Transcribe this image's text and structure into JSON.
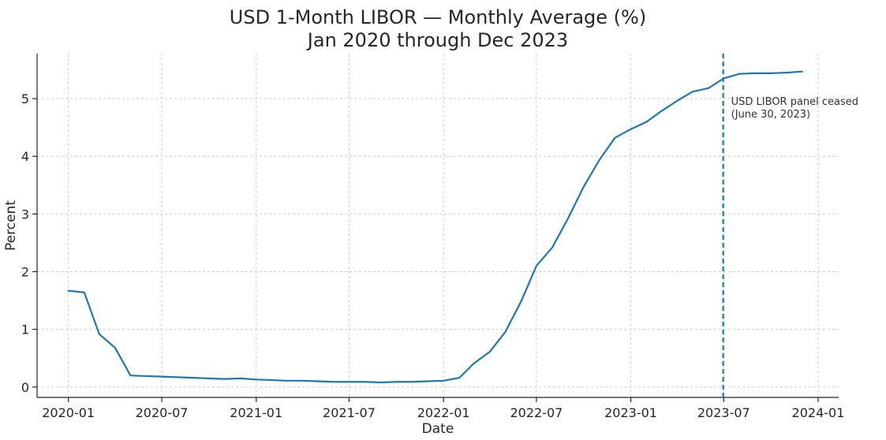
{
  "chart_data": {
    "type": "line",
    "title": "USD 1-Month LIBOR — Monthly Average (%)",
    "subtitle": "Jan 2020 through Dec 2023",
    "xlabel": "Date",
    "ylabel": "Percent",
    "x_type": "date",
    "xlim": [
      "2019-11-01",
      "2024-02-10"
    ],
    "ylim": [
      -0.18,
      5.78
    ],
    "grid": true,
    "x_ticks": [
      "2020-01",
      "2020-07",
      "2021-01",
      "2021-07",
      "2022-01",
      "2022-07",
      "2023-01",
      "2023-07",
      "2024-01"
    ],
    "y_ticks": [
      0,
      1,
      2,
      3,
      4,
      5
    ],
    "series": [
      {
        "color": "#1f77b4",
        "x": [
          "2020-01-01",
          "2020-02-01",
          "2020-03-01",
          "2020-04-01",
          "2020-05-01",
          "2020-06-01",
          "2020-07-01",
          "2020-08-01",
          "2020-09-01",
          "2020-10-01",
          "2020-11-01",
          "2020-12-01",
          "2021-01-01",
          "2021-02-01",
          "2021-03-01",
          "2021-04-01",
          "2021-05-01",
          "2021-06-01",
          "2021-07-01",
          "2021-08-01",
          "2021-09-01",
          "2021-10-01",
          "2021-11-01",
          "2021-12-01",
          "2022-01-01",
          "2022-02-01",
          "2022-03-01",
          "2022-04-01",
          "2022-05-01",
          "2022-06-01",
          "2022-07-01",
          "2022-08-01",
          "2022-09-01",
          "2022-10-01",
          "2022-11-01",
          "2022-12-01",
          "2023-01-01",
          "2023-02-01",
          "2023-03-01",
          "2023-04-01",
          "2023-05-01",
          "2023-06-01",
          "2023-07-01",
          "2023-08-01",
          "2023-09-01",
          "2023-10-01",
          "2023-11-01",
          "2023-12-01"
        ],
        "y": [
          1.67,
          1.64,
          0.92,
          0.68,
          0.2,
          0.19,
          0.18,
          0.17,
          0.16,
          0.15,
          0.14,
          0.15,
          0.13,
          0.12,
          0.11,
          0.11,
          0.1,
          0.09,
          0.09,
          0.09,
          0.08,
          0.09,
          0.09,
          0.1,
          0.11,
          0.16,
          0.41,
          0.61,
          0.95,
          1.48,
          2.1,
          2.42,
          2.93,
          3.47,
          3.94,
          4.32,
          4.47,
          4.6,
          4.78,
          4.96,
          5.12,
          5.18,
          5.35,
          5.43,
          5.44,
          5.44,
          5.45,
          5.47
        ]
      }
    ],
    "annotations": [
      {
        "type": "vline",
        "x": "2023-06-30",
        "style": "dashed",
        "color": "#1f77b4",
        "text_lines": [
          "USD LIBOR panel ceased",
          "(June 30, 2023)"
        ]
      }
    ]
  }
}
